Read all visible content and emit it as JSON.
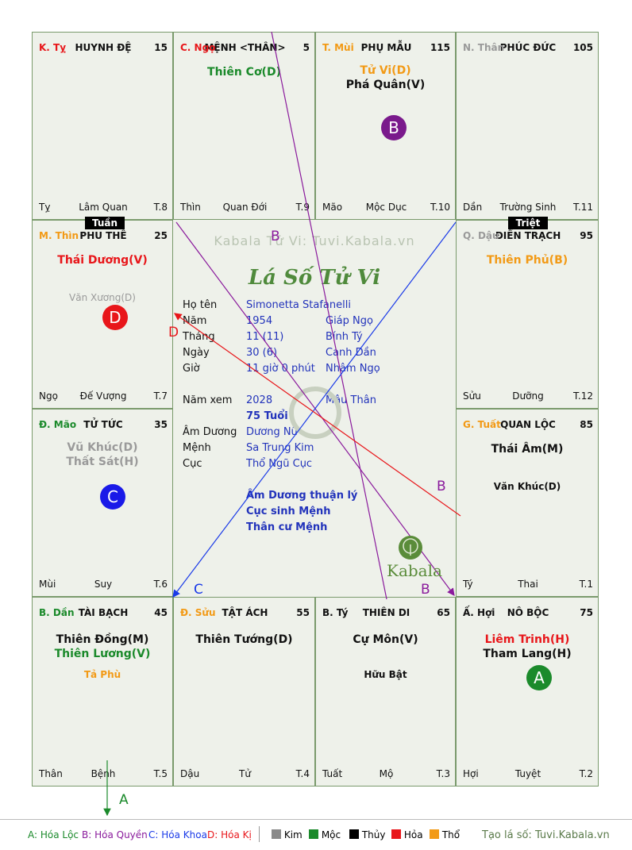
{
  "cells": [
    {
      "branch": "K. Tỵ",
      "branch_color": "#e8161a",
      "palace": "HUYNH ĐỆ",
      "num": "15",
      "major": [],
      "minor": [],
      "foot_left": "Tỵ",
      "foot_center": "Lâm Quan",
      "foot_right": "T.8"
    },
    {
      "branch": "C. Ngọ",
      "branch_color": "#e8161a",
      "palace": "MỆNH <THÂN>",
      "num": "5",
      "major": [
        {
          "text": "Thiên Cơ(D)",
          "color": "#1b8a2b"
        }
      ],
      "minor": [],
      "foot_left": "Thìn",
      "foot_center": "Quan Đới",
      "foot_right": "T.9"
    },
    {
      "branch": "T. Mùi",
      "branch_color": "#f29a16",
      "palace": "PHỤ MẪU",
      "num": "115",
      "major": [
        {
          "text": "Tử Vi(D)",
          "color": "#f29a16"
        },
        {
          "text": "Phá Quân(V)",
          "color": "#111111"
        }
      ],
      "minor": [],
      "foot_left": "Mão",
      "foot_center": "Mộc Dục",
      "foot_right": "T.10"
    },
    {
      "branch": "N. Thân",
      "branch_color": "#9a9a9a",
      "palace": "PHÚC ĐỨC",
      "num": "105",
      "major": [],
      "minor": [],
      "foot_left": "Dần",
      "foot_center": "Trường Sinh",
      "foot_right": "T.11"
    },
    {
      "branch": "M. Thìn",
      "branch_color": "#f29a16",
      "palace": "PHU THÊ",
      "num": "25",
      "major": [
        {
          "text": "Thái Dương(V)",
          "color": "#e8161a"
        }
      ],
      "minor": [
        {
          "text": "Văn Xương(D)",
          "color": "#9a9a9a"
        }
      ],
      "foot_left": "Ngọ",
      "foot_center": "Đế Vượng",
      "foot_right": "T.7"
    },
    {
      "branch": "Q. Dậu",
      "branch_color": "#9a9a9a",
      "palace": "ĐIỀN TRẠCH",
      "num": "95",
      "major": [
        {
          "text": "Thiên Phủ(B)",
          "color": "#f29a16"
        }
      ],
      "minor": [],
      "foot_left": "Sửu",
      "foot_center": "Dưỡng",
      "foot_right": "T.12"
    },
    {
      "branch": "Đ. Mão",
      "branch_color": "#1b8a2b",
      "palace": "TỬ TỨC",
      "num": "35",
      "major": [
        {
          "text": "Vũ Khúc(D)",
          "color": "#9a9a9a"
        },
        {
          "text": "Thất Sát(H)",
          "color": "#9a9a9a"
        }
      ],
      "minor": [],
      "foot_left": "Mùi",
      "foot_center": "Suy",
      "foot_right": "T.6"
    },
    {
      "branch": "G. Tuất",
      "branch_color": "#f29a16",
      "palace": "QUAN LỘC",
      "num": "85",
      "major": [
        {
          "text": "Thái Âm(M)",
          "color": "#111111"
        }
      ],
      "minor": [
        {
          "text": "Văn Khúc(D)",
          "color": "#111111"
        }
      ],
      "foot_left": "Tý",
      "foot_center": "Thai",
      "foot_right": "T.1"
    },
    {
      "branch": "B. Dần",
      "branch_color": "#1b8a2b",
      "palace": "TÀI BẠCH",
      "num": "45",
      "major": [
        {
          "text": "Thiên Đồng(M)",
          "color": "#111111"
        },
        {
          "text": "Thiên Lương(V)",
          "color": "#1b8a2b"
        }
      ],
      "minor": [
        {
          "text": "Tả Phù",
          "color": "#f29a16"
        }
      ],
      "foot_left": "Thân",
      "foot_center": "Bệnh",
      "foot_right": "T.5"
    },
    {
      "branch": "Đ. Sửu",
      "branch_color": "#f29a16",
      "palace": "TẬT ÁCH",
      "num": "55",
      "major": [
        {
          "text": "Thiên Tướng(D)",
          "color": "#111111"
        }
      ],
      "minor": [],
      "foot_left": "Dậu",
      "foot_center": "Tử",
      "foot_right": "T.4"
    },
    {
      "branch": "B. Tý",
      "branch_color": "#111111",
      "palace": "THIÊN DI",
      "num": "65",
      "major": [
        {
          "text": "Cự Môn(V)",
          "color": "#111111"
        }
      ],
      "minor": [
        {
          "text": "Hữu Bật",
          "color": "#111111"
        }
      ],
      "foot_left": "Tuất",
      "foot_center": "Mộ",
      "foot_right": "T.3"
    },
    {
      "branch": "Ấ. Hợi",
      "branch_color": "#111111",
      "palace": "NÔ BỘC",
      "num": "75",
      "major": [
        {
          "text": "Liêm Trinh(H)",
          "color": "#e8161a"
        },
        {
          "text": "Tham Lang(H)",
          "color": "#111111"
        }
      ],
      "minor": [],
      "foot_left": "Hợi",
      "foot_center": "Tuyệt",
      "foot_right": "T.2"
    }
  ],
  "badges": [
    {
      "letter": "B",
      "color": "#7a1a8c"
    },
    {
      "letter": "D",
      "color": "#e8161a"
    },
    {
      "letter": "C",
      "color": "#1a1ae8"
    },
    {
      "letter": "A",
      "color": "#1b8a2b"
    }
  ],
  "tags": {
    "tuan": "Tuần",
    "triet": "Triệt"
  },
  "center": {
    "watermark": "Kabala Tử Vi: Tuvi.Kabala.vn",
    "title": "Lá Số Tử Vi",
    "logo_text": "Kabala",
    "rows": [
      {
        "label": "Họ tên",
        "v1": "Simonetta Stafanelli",
        "v2": ""
      },
      {
        "label": "Năm",
        "v1": "1954",
        "v2": "Giáp Ngọ"
      },
      {
        "label": "Tháng",
        "v1": "11  (11)",
        "v2": "Bính Tý"
      },
      {
        "label": "Ngày",
        "v1": "30  (6)",
        "v2": "Canh Dần"
      },
      {
        "label": "Giờ",
        "v1": "11 giờ 0 phút",
        "v2": "Nhâm Ngọ"
      },
      {
        "label": "Năm xem",
        "v1": "2028",
        "v2": "Mậu Thân"
      },
      {
        "label": "",
        "v1": "75 Tuổi",
        "v2": ""
      },
      {
        "label": "Âm Dương",
        "v1": "Dương Nữ",
        "v2": ""
      },
      {
        "label": "Mệnh",
        "v1": "Sa Trung Kim",
        "v2": ""
      },
      {
        "label": "Cục",
        "v1": "Thổ Ngũ Cục",
        "v2": ""
      }
    ],
    "notes": [
      "Âm Dương thuận lý",
      "Cục sinh Mệnh",
      "Thân cư Mệnh"
    ]
  },
  "arrow_labels": {
    "a": "A",
    "b": "B",
    "c": "C",
    "d": "D"
  },
  "legend": {
    "a": "A: Hóa Lộc",
    "b": "B: Hóa Quyền",
    "c": "C: Hóa Khoa",
    "d": "D: Hóa Kị",
    "kim": "Kim",
    "moc": "Mộc",
    "thuy": "Thủy",
    "hoa": "Hỏa",
    "tho": "Thổ",
    "credit": "Tạo lá số: Tuvi.Kabala.vn"
  }
}
